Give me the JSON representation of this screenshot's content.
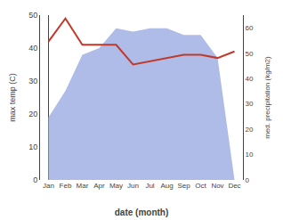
{
  "chart_data": {
    "type": "line",
    "categories": [
      "Jan",
      "Feb",
      "Mar",
      "Apr",
      "May",
      "Jun",
      "Jul",
      "Aug",
      "Sep",
      "Oct",
      "Nov",
      "Dec"
    ],
    "series": [
      {
        "type": "area",
        "color": "#b0bce8",
        "values": [
          19,
          27,
          38,
          40,
          46,
          45,
          46,
          46,
          44,
          44,
          37,
          0
        ]
      },
      {
        "type": "line",
        "color": "#c0392b",
        "values": [
          42,
          49,
          41,
          41,
          41,
          35,
          36,
          37,
          38,
          38,
          37,
          39
        ]
      }
    ],
    "xlabel": "date (month)",
    "ylabel": "max temp (C)",
    "y2label": "med. precipitation (kg/m2)",
    "ylim": [
      0,
      50
    ],
    "yticks": [
      0,
      10,
      20,
      30,
      40,
      50
    ],
    "y2lim": [
      0,
      65
    ],
    "y2ticks": [
      0,
      10,
      20,
      30,
      40,
      50,
      60
    ],
    "grid": false
  }
}
